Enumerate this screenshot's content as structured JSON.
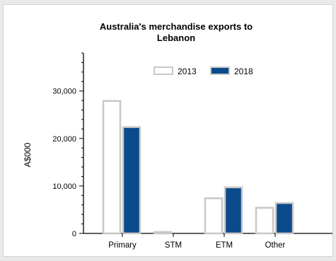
{
  "chart_data": {
    "type": "bar",
    "title": "Australia's merchandise exports to Lebanon",
    "title_lines": [
      "Australia's merchandise exports to",
      "Lebanon"
    ],
    "xlabel": "",
    "ylabel": "A$000",
    "categories": [
      "Primary",
      "STM",
      "ETM",
      "Other"
    ],
    "series": [
      {
        "name": "2013",
        "values": [
          27900,
          300,
          7400,
          5400
        ],
        "fill": "#ffffff",
        "stroke": "#c8c8c8"
      },
      {
        "name": "2018",
        "values": [
          22400,
          0,
          9700,
          6400
        ],
        "fill": "#0b4a8b",
        "stroke": "#c8c8c8"
      }
    ],
    "ylim": [
      0,
      38000
    ],
    "yticks": [
      0,
      10000,
      20000,
      30000
    ],
    "ytick_labels": [
      "0",
      "10,000",
      "20,000",
      "30,000"
    ],
    "legend_position": "top-center",
    "grid": false
  }
}
